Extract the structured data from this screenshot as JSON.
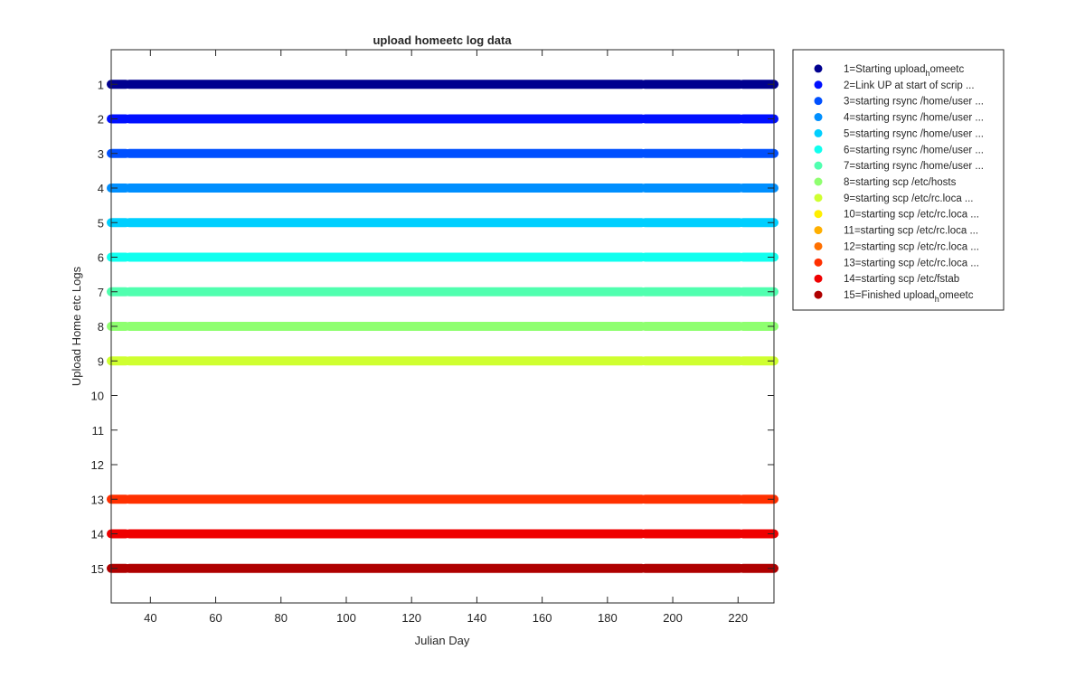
{
  "chart_data": {
    "type": "scatter",
    "title": "upload homeetc log data",
    "xlabel": "Julian Day",
    "ylabel": "Upload Home etc Logs",
    "xlim": [
      28,
      231
    ],
    "ylim": [
      0,
      16
    ],
    "y_reversed": true,
    "xticks": [
      40,
      60,
      80,
      100,
      120,
      140,
      160,
      180,
      200,
      220
    ],
    "yticks": [
      1,
      2,
      3,
      4,
      5,
      6,
      7,
      8,
      9,
      10,
      11,
      12,
      13,
      14,
      15
    ],
    "grid": false,
    "legend_position": "outside-top-right",
    "x_range": [
      28,
      231
    ],
    "gaps": [
      [
        32.5,
        33.5
      ],
      [
        190.5,
        191.5
      ],
      [
        220.5,
        221.5
      ]
    ],
    "series": [
      {
        "y": 1,
        "present": true,
        "color": "#00008f",
        "name": "1=Starting upload",
        "sub": "h",
        "tail": "omeetc"
      },
      {
        "y": 2,
        "present": true,
        "color": "#0010ff",
        "name": "2=Link UP at start of scrip ...",
        "sub": "",
        "tail": ""
      },
      {
        "y": 3,
        "present": true,
        "color": "#0050ff",
        "name": "3=starting rsync /home/user ...",
        "sub": "",
        "tail": ""
      },
      {
        "y": 4,
        "present": true,
        "color": "#008fff",
        "name": "4=starting rsync /home/user ...",
        "sub": "",
        "tail": ""
      },
      {
        "y": 5,
        "present": true,
        "color": "#00cfff",
        "name": "5=starting rsync /home/user ...",
        "sub": "",
        "tail": ""
      },
      {
        "y": 6,
        "present": true,
        "color": "#10ffef",
        "name": "6=starting rsync /home/user ...",
        "sub": "",
        "tail": ""
      },
      {
        "y": 7,
        "present": true,
        "color": "#50ffaf",
        "name": "7=starting rsync /home/user ...",
        "sub": "",
        "tail": ""
      },
      {
        "y": 8,
        "present": true,
        "color": "#8fff70",
        "name": "8=starting scp /etc/hosts",
        "sub": "",
        "tail": ""
      },
      {
        "y": 9,
        "present": true,
        "color": "#cfff30",
        "name": "9=starting scp /etc/rc.loca ...",
        "sub": "",
        "tail": ""
      },
      {
        "y": 10,
        "present": false,
        "color": "#ffef00",
        "name": "10=starting scp /etc/rc.loca ...",
        "sub": "",
        "tail": ""
      },
      {
        "y": 11,
        "present": false,
        "color": "#ffaf00",
        "name": "11=starting scp /etc/rc.loca ...",
        "sub": "",
        "tail": ""
      },
      {
        "y": 12,
        "present": false,
        "color": "#ff7000",
        "name": "12=starting scp /etc/rc.loca ...",
        "sub": "",
        "tail": ""
      },
      {
        "y": 13,
        "present": true,
        "color": "#ff3000",
        "name": "13=starting scp /etc/rc.loca ...",
        "sub": "",
        "tail": ""
      },
      {
        "y": 14,
        "present": true,
        "color": "#ef0000",
        "name": "14=starting scp /etc/fstab",
        "sub": "",
        "tail": ""
      },
      {
        "y": 15,
        "present": true,
        "color": "#af0000",
        "name": "15=Finished upload",
        "sub": "h",
        "tail": "omeetc"
      }
    ]
  }
}
